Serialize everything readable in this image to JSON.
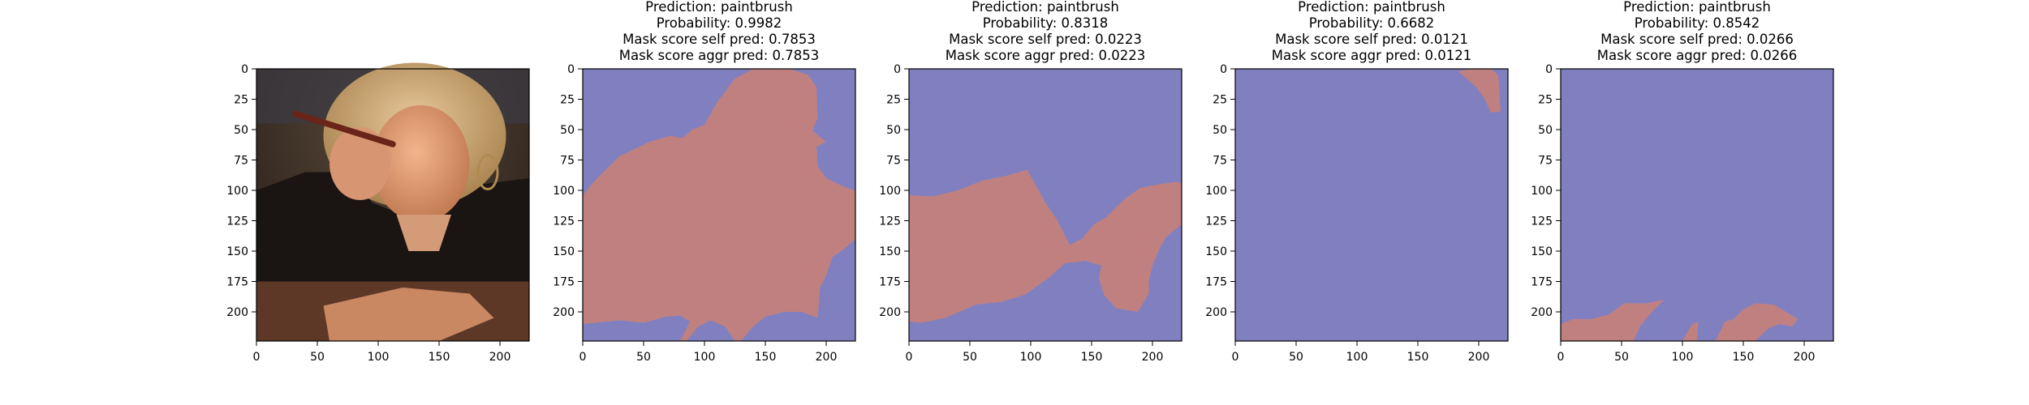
{
  "colors": {
    "background_class": "#8080c0",
    "object_class": "#c08080",
    "axis": "#000000"
  },
  "chart_data": [
    {
      "type": "image",
      "content": "photo of a woman with blonde hair holding a paintbrush to her lips",
      "title_lines": [],
      "xticks": [
        "0",
        "50",
        "100",
        "150",
        "200"
      ],
      "yticks": [
        "0",
        "25",
        "50",
        "75",
        "100",
        "125",
        "150",
        "175",
        "200"
      ],
      "xlim": [
        0,
        224
      ],
      "ylim": [
        224,
        0
      ]
    },
    {
      "type": "heatmap",
      "title_lines": [
        "Prediction: paintbrush",
        "Probability: 0.9982",
        "Mask score self pred: 0.7853",
        "Mask score aggr pred: 0.7853"
      ],
      "prediction": "paintbrush",
      "probability": 0.9982,
      "mask_score_self": 0.7853,
      "mask_score_aggr": 0.7853,
      "xticks": [
        "0",
        "50",
        "100",
        "150",
        "200"
      ],
      "yticks": [
        "0",
        "25",
        "50",
        "75",
        "100",
        "125",
        "150",
        "175",
        "200"
      ],
      "xlim": [
        0,
        224
      ],
      "ylim": [
        224,
        0
      ],
      "mask_regions": [
        [
          [
            0,
            104
          ],
          [
            10,
            92
          ],
          [
            30,
            72
          ],
          [
            55,
            60
          ],
          [
            72,
            55
          ],
          [
            82,
            57
          ],
          [
            90,
            50
          ],
          [
            100,
            46
          ],
          [
            110,
            28
          ],
          [
            125,
            8
          ],
          [
            140,
            0
          ],
          [
            170,
            0
          ],
          [
            185,
            5
          ],
          [
            192,
            15
          ],
          [
            193,
            40
          ],
          [
            187,
            55
          ],
          [
            192,
            62
          ],
          [
            193,
            80
          ],
          [
            200,
            90
          ],
          [
            210,
            95
          ],
          [
            220,
            99
          ],
          [
            224,
            100
          ],
          [
            224,
            140
          ],
          [
            215,
            148
          ],
          [
            205,
            155
          ],
          [
            200,
            170
          ],
          [
            195,
            180
          ],
          [
            193,
            205
          ],
          [
            180,
            200
          ],
          [
            165,
            200
          ],
          [
            150,
            204
          ],
          [
            140,
            212
          ],
          [
            130,
            224
          ],
          [
            125,
            224
          ],
          [
            117,
            212
          ],
          [
            105,
            207
          ],
          [
            95,
            212
          ],
          [
            85,
            224
          ],
          [
            80,
            224
          ],
          [
            88,
            208
          ],
          [
            80,
            203
          ],
          [
            68,
            204
          ],
          [
            50,
            209
          ],
          [
            30,
            207
          ],
          [
            10,
            209
          ],
          [
            0,
            210
          ]
        ],
        [
          [
            185,
            48
          ],
          [
            200,
            60
          ],
          [
            190,
            65
          ]
        ]
      ]
    },
    {
      "type": "heatmap",
      "title_lines": [
        "Prediction: paintbrush",
        "Probability: 0.8318",
        "Mask score self pred: 0.0223",
        "Mask score aggr pred: 0.0223"
      ],
      "prediction": "paintbrush",
      "probability": 0.8318,
      "mask_score_self": 0.0223,
      "mask_score_aggr": 0.0223,
      "xticks": [
        "0",
        "50",
        "100",
        "150",
        "200"
      ],
      "yticks": [
        "0",
        "25",
        "50",
        "75",
        "100",
        "125",
        "150",
        "175",
        "200"
      ],
      "xlim": [
        0,
        224
      ],
      "ylim": [
        224,
        0
      ],
      "mask_regions": [
        [
          [
            0,
            104
          ],
          [
            20,
            105
          ],
          [
            40,
            100
          ],
          [
            60,
            92
          ],
          [
            80,
            88
          ],
          [
            97,
            83
          ],
          [
            102,
            92
          ],
          [
            112,
            110
          ],
          [
            122,
            125
          ],
          [
            132,
            145
          ],
          [
            142,
            140
          ],
          [
            152,
            128
          ],
          [
            162,
            122
          ],
          [
            172,
            112
          ],
          [
            180,
            105
          ],
          [
            190,
            98
          ],
          [
            205,
            95
          ],
          [
            220,
            93
          ],
          [
            224,
            94
          ],
          [
            224,
            128
          ],
          [
            215,
            135
          ],
          [
            210,
            140
          ],
          [
            205,
            150
          ],
          [
            200,
            162
          ],
          [
            197,
            175
          ],
          [
            197,
            185
          ],
          [
            188,
            200
          ],
          [
            170,
            197
          ],
          [
            160,
            186
          ],
          [
            156,
            172
          ],
          [
            158,
            162
          ],
          [
            145,
            158
          ],
          [
            128,
            160
          ],
          [
            115,
            172
          ],
          [
            95,
            186
          ],
          [
            75,
            192
          ],
          [
            55,
            194
          ],
          [
            30,
            205
          ],
          [
            10,
            209
          ],
          [
            0,
            208
          ]
        ]
      ]
    },
    {
      "type": "heatmap",
      "title_lines": [
        "Prediction: paintbrush",
        "Probability: 0.6682",
        "Mask score self pred: 0.0121",
        "Mask score aggr pred: 0.0121"
      ],
      "prediction": "paintbrush",
      "probability": 0.6682,
      "mask_score_self": 0.0121,
      "mask_score_aggr": 0.0121,
      "xticks": [
        "0",
        "50",
        "100",
        "150",
        "200"
      ],
      "yticks": [
        "0",
        "25",
        "50",
        "75",
        "100",
        "125",
        "150",
        "175",
        "200"
      ],
      "xlim": [
        0,
        224
      ],
      "ylim": [
        224,
        0
      ],
      "mask_regions": [
        [
          [
            183,
            2
          ],
          [
            195,
            0
          ],
          [
            210,
            0
          ],
          [
            216,
            5
          ],
          [
            217,
            20
          ],
          [
            218,
            35
          ],
          [
            210,
            36
          ],
          [
            205,
            25
          ],
          [
            198,
            15
          ],
          [
            190,
            8
          ]
        ]
      ]
    },
    {
      "type": "heatmap",
      "title_lines": [
        "Prediction: paintbrush",
        "Probability: 0.8542",
        "Mask score self pred: 0.0266",
        "Mask score aggr pred: 0.0266"
      ],
      "prediction": "paintbrush",
      "probability": 0.8542,
      "mask_score_self": 0.0266,
      "mask_score_aggr": 0.0266,
      "xticks": [
        "0",
        "50",
        "100",
        "150",
        "200"
      ],
      "yticks": [
        "0",
        "25",
        "50",
        "75",
        "100",
        "125",
        "150",
        "175",
        "200"
      ],
      "xlim": [
        0,
        224
      ],
      "ylim": [
        224,
        0
      ],
      "mask_regions": [
        [
          [
            0,
            210
          ],
          [
            10,
            206
          ],
          [
            25,
            206
          ],
          [
            40,
            202
          ],
          [
            52,
            193
          ],
          [
            70,
            193
          ],
          [
            85,
            190
          ],
          [
            75,
            200
          ],
          [
            65,
            212
          ],
          [
            60,
            224
          ],
          [
            0,
            224
          ]
        ],
        [
          [
            100,
            224
          ],
          [
            108,
            210
          ],
          [
            113,
            208
          ],
          [
            112,
            224
          ]
        ],
        [
          [
            127,
            224
          ],
          [
            135,
            208
          ],
          [
            142,
            206
          ],
          [
            150,
            198
          ],
          [
            160,
            193
          ],
          [
            175,
            194
          ],
          [
            185,
            200
          ],
          [
            195,
            206
          ],
          [
            190,
            212
          ],
          [
            180,
            210
          ],
          [
            170,
            214
          ],
          [
            160,
            224
          ]
        ]
      ]
    }
  ]
}
